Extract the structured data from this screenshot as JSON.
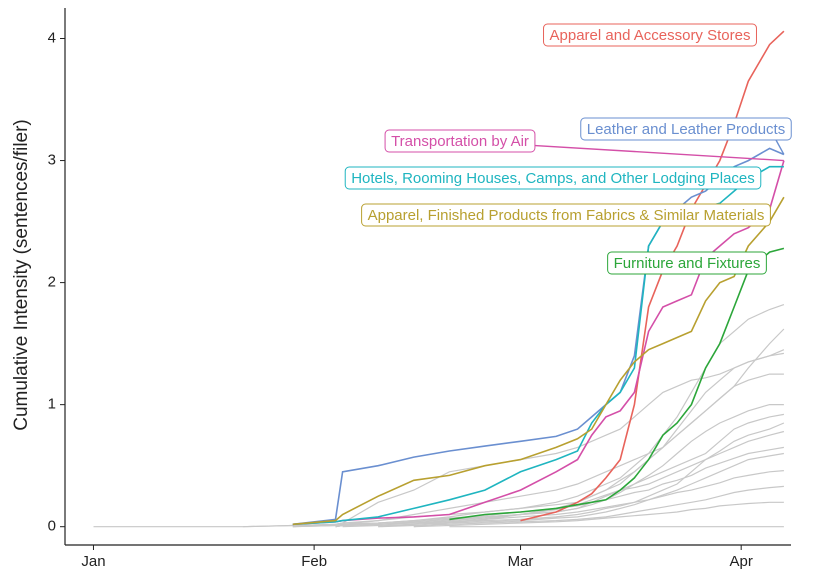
{
  "chart_data": {
    "type": "line",
    "y_label": "Cumulative Intensity (sentences/filer)",
    "x": [
      0,
      21,
      28,
      34,
      35,
      40,
      45,
      50,
      55,
      60,
      65,
      68,
      70,
      72,
      74,
      76,
      78,
      80,
      82,
      84,
      86,
      88,
      90,
      92,
      95,
      97
    ],
    "xlim": [
      -4,
      98
    ],
    "xticks": [
      {
        "value": 0,
        "label": "Jan"
      },
      {
        "value": 31,
        "label": "Feb"
      },
      {
        "value": 60,
        "label": "Mar"
      },
      {
        "value": 91,
        "label": "Apr"
      }
    ],
    "ylim": [
      -0.15,
      4.25
    ],
    "yticks": [
      0,
      1,
      2,
      3,
      4
    ],
    "series": [
      {
        "color": "#c8c8c8",
        "values": [
          0,
          0,
          0.01,
          0.02,
          0.02,
          0.03,
          0.05,
          0.08,
          0.12,
          0.15,
          0.2,
          0.25,
          0.3,
          0.35,
          0.4,
          0.5,
          0.6,
          0.75,
          0.9,
          1.1,
          1.3,
          1.5,
          1.6,
          1.7,
          1.78,
          1.82
        ]
      },
      {
        "color": "#c8c8c8",
        "values": [
          null,
          0,
          0.01,
          0.02,
          0.03,
          0.05,
          0.08,
          0.1,
          0.12,
          0.15,
          0.18,
          0.2,
          0.25,
          0.3,
          0.35,
          0.45,
          0.55,
          0.65,
          0.8,
          0.95,
          1.1,
          1.2,
          1.3,
          1.35,
          1.4,
          1.45
        ]
      },
      {
        "color": "#c8c8c8",
        "values": [
          null,
          null,
          0,
          0.02,
          0.03,
          0.2,
          0.3,
          0.45,
          0.5,
          0.55,
          0.6,
          0.65,
          0.7,
          0.75,
          0.8,
          0.9,
          1.0,
          1.1,
          1.15,
          1.2,
          1.22,
          1.25,
          1.3,
          1.35,
          1.4,
          1.42
        ]
      },
      {
        "color": "#c8c8c8",
        "values": [
          null,
          null,
          0,
          0.01,
          0.02,
          0.05,
          0.1,
          0.15,
          0.2,
          0.25,
          0.3,
          0.35,
          0.4,
          0.45,
          0.5,
          0.55,
          0.6,
          0.65,
          0.75,
          0.85,
          0.95,
          1.05,
          1.15,
          1.2,
          1.25,
          1.25
        ]
      },
      {
        "color": "#c8c8c8",
        "values": [
          null,
          null,
          null,
          0,
          0.01,
          0.02,
          0.04,
          0.06,
          0.08,
          0.1,
          0.12,
          0.15,
          0.2,
          0.25,
          0.3,
          0.35,
          0.4,
          0.45,
          0.5,
          0.55,
          0.6,
          0.7,
          0.8,
          0.85,
          0.9,
          0.92
        ]
      },
      {
        "color": "#c8c8c8",
        "values": [
          null,
          null,
          null,
          0,
          0.01,
          0.02,
          0.03,
          0.05,
          0.07,
          0.1,
          0.14,
          0.18,
          0.22,
          0.26,
          0.3,
          0.32,
          0.35,
          0.4,
          0.45,
          0.5,
          0.55,
          0.6,
          0.65,
          0.7,
          0.75,
          0.78
        ]
      },
      {
        "color": "#c8c8c8",
        "values": [
          null,
          null,
          0,
          0.01,
          0.02,
          0.03,
          0.05,
          0.07,
          0.09,
          0.12,
          0.15,
          0.17,
          0.2,
          0.22,
          0.25,
          0.28,
          0.3,
          0.35,
          0.38,
          0.42,
          0.48,
          0.52,
          0.56,
          0.6,
          0.63,
          0.65
        ]
      },
      {
        "color": "#c8c8c8",
        "values": [
          null,
          null,
          null,
          null,
          0,
          0.01,
          0.02,
          0.03,
          0.04,
          0.05,
          0.07,
          0.08,
          0.1,
          0.12,
          0.15,
          0.18,
          0.22,
          0.26,
          0.3,
          0.35,
          0.4,
          0.45,
          0.5,
          0.55,
          0.58,
          0.6
        ]
      },
      {
        "color": "#c8c8c8",
        "values": [
          null,
          null,
          null,
          0,
          0.01,
          0.02,
          0.03,
          0.04,
          0.05,
          0.06,
          0.08,
          0.1,
          0.12,
          0.15,
          0.17,
          0.2,
          0.22,
          0.25,
          0.28,
          0.3,
          0.33,
          0.36,
          0.4,
          0.42,
          0.45,
          0.46
        ]
      },
      {
        "color": "#c8c8c8",
        "values": [
          null,
          null,
          null,
          null,
          null,
          0,
          0.01,
          0.02,
          0.03,
          0.04,
          0.05,
          0.06,
          0.07,
          0.08,
          0.1,
          0.12,
          0.14,
          0.16,
          0.18,
          0.2,
          0.22,
          0.25,
          0.28,
          0.3,
          0.32,
          0.33
        ]
      },
      {
        "color": "#c8c8c8",
        "values": [
          null,
          null,
          null,
          null,
          null,
          null,
          0,
          0.01,
          0.02,
          0.03,
          0.04,
          0.05,
          0.06,
          0.07,
          0.08,
          0.09,
          0.1,
          0.11,
          0.12,
          0.14,
          0.15,
          0.17,
          0.18,
          0.19,
          0.2,
          0.2
        ]
      },
      {
        "color": "#c8c8c8",
        "values": [
          null,
          null,
          null,
          0,
          0.01,
          0.02,
          0.04,
          0.06,
          0.08,
          0.1,
          0.12,
          0.15,
          0.18,
          0.22,
          0.28,
          0.35,
          0.42,
          0.5,
          0.6,
          0.7,
          0.78,
          0.85,
          0.9,
          0.95,
          1.0,
          1.0
        ]
      },
      {
        "color": "#c8c8c8",
        "values": [
          null,
          null,
          null,
          null,
          null,
          0,
          0.02,
          0.04,
          0.06,
          0.08,
          0.1,
          0.12,
          0.14,
          0.16,
          0.18,
          0.2,
          0.25,
          0.3,
          0.35,
          0.45,
          0.55,
          0.62,
          0.7,
          0.75,
          0.8,
          0.85
        ]
      },
      {
        "color": "#c8c8c8",
        "values": [
          null,
          null,
          null,
          null,
          null,
          null,
          null,
          0,
          0,
          0,
          0,
          0,
          0,
          0,
          0,
          0,
          0,
          0,
          0,
          0,
          0,
          0,
          0,
          0,
          0,
          0
        ]
      },
      {
        "color": "#c8c8c8",
        "values": [
          null,
          null,
          null,
          null,
          null,
          null,
          0,
          0.03,
          0.06,
          0.1,
          0.15,
          0.2,
          0.25,
          0.3,
          0.38,
          0.45,
          0.55,
          0.65,
          0.75,
          0.85,
          0.95,
          1.05,
          1.15,
          1.3,
          1.5,
          1.62
        ]
      },
      {
        "name": "Apparel and Accessory Stores",
        "color": "#e8635b",
        "values": [
          null,
          null,
          null,
          null,
          null,
          null,
          null,
          null,
          null,
          0.05,
          0.12,
          0.2,
          0.27,
          0.4,
          0.55,
          1.0,
          1.8,
          2.1,
          2.3,
          2.6,
          2.8,
          3.0,
          3.3,
          3.65,
          3.95,
          4.06
        ]
      },
      {
        "name": "Leather and Leather Products",
        "color": "#6a8fd0",
        "values": [
          null,
          null,
          0.02,
          0.06,
          0.45,
          0.5,
          0.57,
          0.62,
          0.66,
          0.7,
          0.74,
          0.8,
          0.9,
          1.0,
          1.1,
          1.4,
          2.3,
          2.5,
          2.6,
          2.7,
          2.75,
          2.85,
          2.95,
          3.0,
          3.1,
          3.05
        ]
      },
      {
        "name": "Transportation by Air",
        "color": "#d44fa8",
        "values": [
          null,
          null,
          0.02,
          0.04,
          0.05,
          0.07,
          0.08,
          0.1,
          0.2,
          0.3,
          0.45,
          0.55,
          0.75,
          0.9,
          0.95,
          1.1,
          1.6,
          1.8,
          1.85,
          1.9,
          2.2,
          2.3,
          2.4,
          2.45,
          2.6,
          3.0
        ]
      },
      {
        "name": "Hotels, Rooming Houses, Camps, and Other Lodging Places",
        "color": "#1fb5c0",
        "values": [
          null,
          null,
          0.02,
          0.04,
          0.05,
          0.08,
          0.15,
          0.22,
          0.3,
          0.45,
          0.55,
          0.62,
          0.85,
          1.0,
          1.1,
          1.3,
          2.3,
          2.5,
          2.55,
          2.6,
          2.62,
          2.65,
          2.75,
          2.85,
          2.95,
          2.95
        ]
      },
      {
        "name": "Apparel, Finished Products from Fabrics & Similar Materials",
        "color": "#b8a030",
        "values": [
          null,
          null,
          0.02,
          0.05,
          0.1,
          0.25,
          0.38,
          0.42,
          0.5,
          0.55,
          0.65,
          0.72,
          0.8,
          1.0,
          1.2,
          1.35,
          1.45,
          1.5,
          1.55,
          1.6,
          1.85,
          2.0,
          2.05,
          2.3,
          2.5,
          2.7
        ]
      },
      {
        "name": "Furniture and Fixtures",
        "color": "#2ca63a",
        "values": [
          null,
          null,
          null,
          null,
          null,
          null,
          null,
          0.06,
          0.1,
          0.12,
          0.15,
          0.18,
          0.2,
          0.22,
          0.3,
          0.4,
          0.55,
          0.75,
          0.85,
          1.0,
          1.3,
          1.5,
          1.8,
          2.1,
          2.25,
          2.28
        ]
      }
    ]
  }
}
